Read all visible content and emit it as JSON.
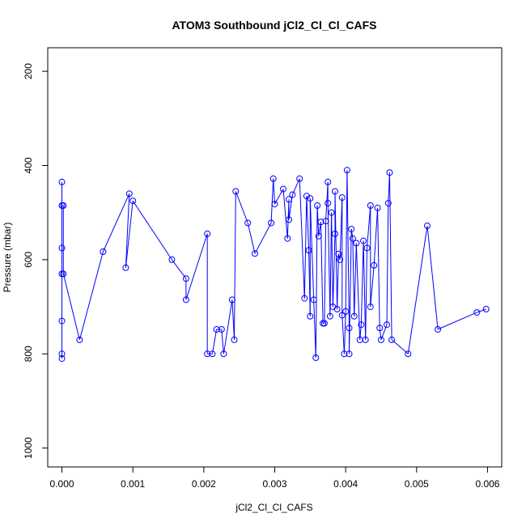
{
  "chart_data": {
    "type": "line",
    "title": "ATOM3 Southbound jCl2_Cl_Cl_CAFS",
    "xlabel": "jCl2_Cl_Cl_CAFS",
    "ylabel": "Pressure (mbar)",
    "xlim": [
      -0.0002,
      0.0062
    ],
    "ylim": [
      1040,
      150
    ],
    "x_ticks": [
      "0.000",
      "0.001",
      "0.002",
      "0.003",
      "0.004",
      "0.005",
      "0.006"
    ],
    "x_tick_values": [
      0,
      0.001,
      0.002,
      0.003,
      0.004,
      0.005,
      0.006
    ],
    "y_ticks": [
      "200",
      "400",
      "600",
      "800",
      "1000"
    ],
    "y_tick_values": [
      200,
      400,
      600,
      800,
      1000
    ],
    "y_reversed": true,
    "grid": false,
    "series_color": "#0000ff",
    "marker": "open-circle",
    "x": [
      0.0,
      0.0,
      0.0,
      0.0,
      0.0,
      0.0,
      0.0,
      2e-05,
      2e-05,
      0.00025,
      0.00058,
      0.00095,
      0.0009,
      0.001,
      0.00155,
      0.00175,
      0.00175,
      0.00205,
      0.00205,
      0.00212,
      0.00218,
      0.00225,
      0.00228,
      0.0024,
      0.00243,
      0.00245,
      0.00262,
      0.00272,
      0.00295,
      0.00298,
      0.003,
      0.00312,
      0.00318,
      0.0032,
      0.0032,
      0.00325,
      0.00335,
      0.00342,
      0.00345,
      0.00348,
      0.0035,
      0.0035,
      0.00355,
      0.00358,
      0.0036,
      0.00362,
      0.00365,
      0.00368,
      0.0037,
      0.00372,
      0.00375,
      0.00375,
      0.00378,
      0.0038,
      0.00382,
      0.00385,
      0.00385,
      0.00388,
      0.0039,
      0.00392,
      0.00395,
      0.00395,
      0.00398,
      0.004,
      0.00402,
      0.00405,
      0.00405,
      0.00408,
      0.0041,
      0.00412,
      0.00415,
      0.0042,
      0.00422,
      0.00425,
      0.00428,
      0.0043,
      0.00435,
      0.00435,
      0.0044,
      0.00445,
      0.00448,
      0.0045,
      0.00458,
      0.0046,
      0.00462,
      0.00465,
      0.00488,
      0.00515,
      0.0053,
      0.00585,
      0.00598
    ],
    "y": [
      435,
      630,
      730,
      575,
      800,
      810,
      485,
      485,
      630,
      770,
      583,
      460,
      617,
      475,
      600,
      640,
      685,
      545,
      800,
      800,
      748,
      748,
      800,
      685,
      770,
      455,
      522,
      587,
      522,
      428,
      482,
      450,
      555,
      472,
      515,
      462,
      428,
      682,
      465,
      580,
      720,
      470,
      685,
      808,
      485,
      550,
      520,
      735,
      735,
      518,
      435,
      480,
      720,
      500,
      700,
      545,
      455,
      705,
      588,
      600,
      468,
      718,
      800,
      710,
      410,
      745,
      800,
      535,
      555,
      720,
      565,
      770,
      738,
      560,
      770,
      575,
      485,
      700,
      612,
      490,
      745,
      770,
      738,
      480,
      415,
      770,
      800,
      528,
      748,
      712,
      705
    ]
  }
}
